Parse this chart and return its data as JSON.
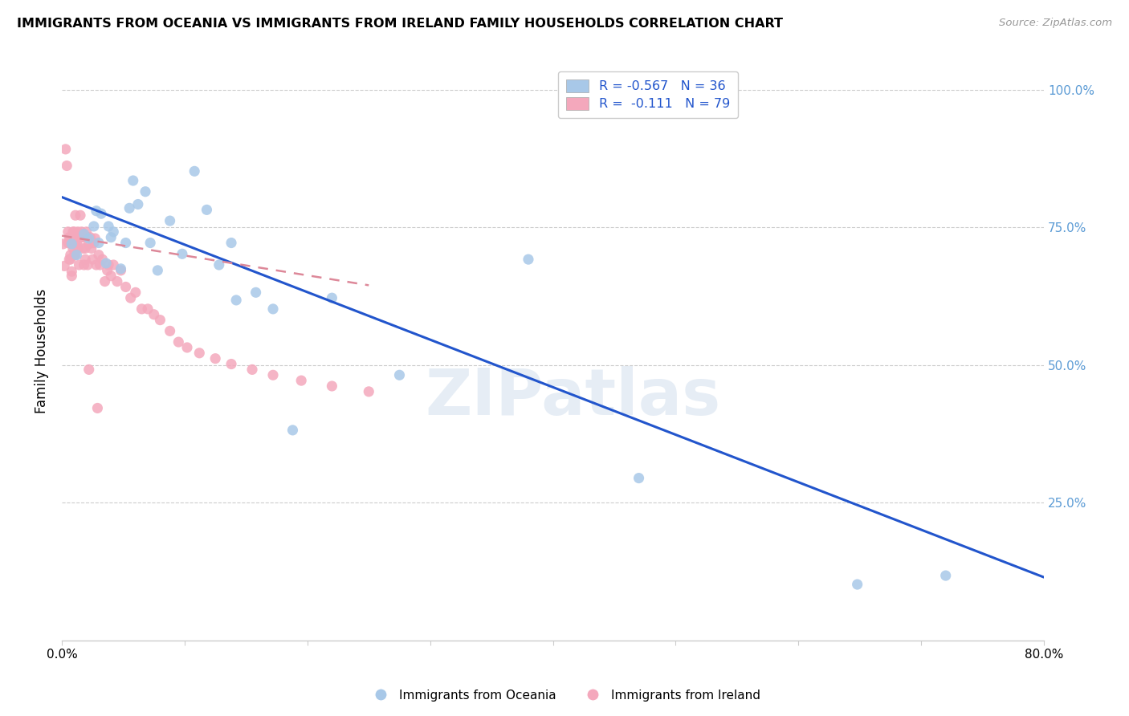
{
  "title": "IMMIGRANTS FROM OCEANIA VS IMMIGRANTS FROM IRELAND FAMILY HOUSEHOLDS CORRELATION CHART",
  "source": "Source: ZipAtlas.com",
  "ylabel": "Family Households",
  "xlim": [
    0.0,
    0.8
  ],
  "ylim": [
    0.0,
    1.05
  ],
  "yticks": [
    0.25,
    0.5,
    0.75,
    1.0
  ],
  "ytick_labels": [
    "25.0%",
    "50.0%",
    "75.0%",
    "100.0%"
  ],
  "xticks": [
    0.0,
    0.1,
    0.2,
    0.3,
    0.4,
    0.5,
    0.6,
    0.7,
    0.8
  ],
  "xtick_labels": [
    "0.0%",
    "",
    "",
    "",
    "",
    "",
    "",
    "",
    "80.0%"
  ],
  "legend_blue_label": "R = -0.567   N = 36",
  "legend_pink_label": "R =  -0.111   N = 79",
  "blue_color": "#a8c8e8",
  "pink_color": "#f4a8bc",
  "blue_line_color": "#2255cc",
  "pink_line_color": "#dd8899",
  "watermark": "ZIPatlas",
  "blue_line_x0": 0.0,
  "blue_line_y0": 0.805,
  "blue_line_x1": 0.8,
  "blue_line_y1": 0.115,
  "pink_line_x0": 0.0,
  "pink_line_y0": 0.735,
  "pink_line_x1": 0.25,
  "pink_line_y1": 0.645,
  "oceania_x": [
    0.008,
    0.012,
    0.018,
    0.022,
    0.026,
    0.028,
    0.03,
    0.032,
    0.036,
    0.038,
    0.04,
    0.042,
    0.048,
    0.052,
    0.055,
    0.058,
    0.062,
    0.068,
    0.072,
    0.078,
    0.088,
    0.098,
    0.108,
    0.118,
    0.128,
    0.138,
    0.142,
    0.158,
    0.172,
    0.188,
    0.22,
    0.275,
    0.38,
    0.47,
    0.648,
    0.72
  ],
  "oceania_y": [
    0.72,
    0.7,
    0.738,
    0.73,
    0.752,
    0.78,
    0.722,
    0.775,
    0.685,
    0.752,
    0.732,
    0.742,
    0.675,
    0.722,
    0.785,
    0.835,
    0.792,
    0.815,
    0.722,
    0.672,
    0.762,
    0.702,
    0.852,
    0.782,
    0.682,
    0.722,
    0.618,
    0.632,
    0.602,
    0.382,
    0.622,
    0.482,
    0.692,
    0.295,
    0.102,
    0.118
  ],
  "ireland_x": [
    0.001,
    0.002,
    0.003,
    0.004,
    0.005,
    0.005,
    0.006,
    0.006,
    0.007,
    0.007,
    0.007,
    0.008,
    0.008,
    0.008,
    0.009,
    0.009,
    0.01,
    0.01,
    0.01,
    0.011,
    0.011,
    0.011,
    0.012,
    0.012,
    0.013,
    0.013,
    0.014,
    0.014,
    0.015,
    0.015,
    0.015,
    0.016,
    0.016,
    0.017,
    0.018,
    0.018,
    0.019,
    0.019,
    0.02,
    0.02,
    0.021,
    0.021,
    0.022,
    0.022,
    0.023,
    0.024,
    0.025,
    0.026,
    0.027,
    0.028,
    0.029,
    0.03,
    0.031,
    0.033,
    0.035,
    0.037,
    0.038,
    0.04,
    0.042,
    0.045,
    0.048,
    0.052,
    0.056,
    0.06,
    0.065,
    0.07,
    0.075,
    0.08,
    0.088,
    0.095,
    0.102,
    0.112,
    0.125,
    0.138,
    0.155,
    0.172,
    0.195,
    0.22,
    0.25
  ],
  "ireland_y": [
    0.72,
    0.68,
    0.892,
    0.862,
    0.722,
    0.742,
    0.692,
    0.732,
    0.7,
    0.692,
    0.732,
    0.72,
    0.67,
    0.662,
    0.742,
    0.712,
    0.732,
    0.7,
    0.742,
    0.722,
    0.772,
    0.7,
    0.722,
    0.732,
    0.742,
    0.712,
    0.682,
    0.732,
    0.732,
    0.772,
    0.732,
    0.742,
    0.732,
    0.712,
    0.682,
    0.732,
    0.712,
    0.692,
    0.732,
    0.742,
    0.682,
    0.732,
    0.72,
    0.492,
    0.732,
    0.712,
    0.692,
    0.722,
    0.73,
    0.682,
    0.422,
    0.7,
    0.682,
    0.692,
    0.652,
    0.672,
    0.682,
    0.662,
    0.682,
    0.652,
    0.672,
    0.642,
    0.622,
    0.632,
    0.602,
    0.602,
    0.592,
    0.582,
    0.562,
    0.542,
    0.532,
    0.522,
    0.512,
    0.502,
    0.492,
    0.482,
    0.472,
    0.462,
    0.452
  ]
}
